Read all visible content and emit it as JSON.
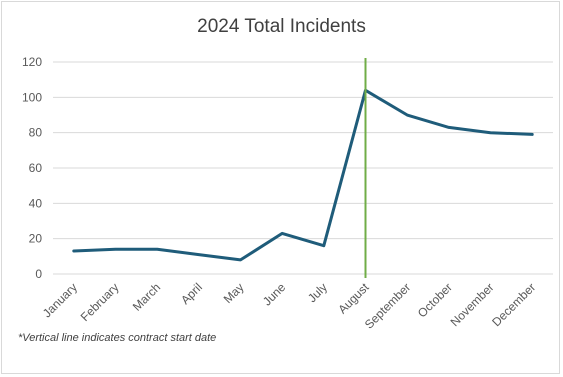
{
  "chart_data": {
    "type": "line",
    "title": "2024 Total Incidents",
    "categories": [
      "January",
      "February",
      "March",
      "April",
      "May",
      "June",
      "July",
      "August",
      "September",
      "October",
      "November",
      "December"
    ],
    "series": [
      {
        "values": [
          13,
          14,
          14,
          11,
          8,
          23,
          16,
          104,
          90,
          83,
          80,
          79
        ]
      }
    ],
    "ylim": [
      0,
      120
    ],
    "yticks": [
      0,
      20,
      40,
      60,
      80,
      100,
      120
    ],
    "grid": true,
    "legend": "none",
    "reference_line": {
      "category": "August",
      "color": "#70ad47"
    },
    "footnote": "*Vertical line indicates contract start date",
    "colors": {
      "series": "#1f5c7a",
      "grid": "#d9d9d9",
      "reference": "#70ad47"
    }
  }
}
